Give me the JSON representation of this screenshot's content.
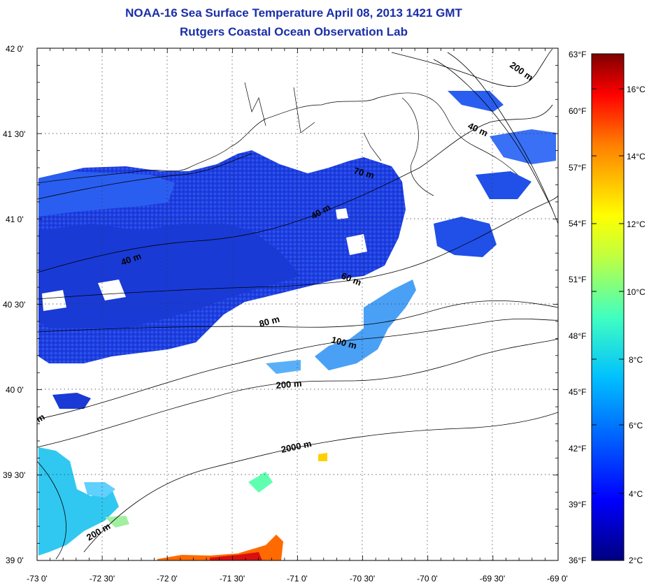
{
  "title": "NOAA-16 Sea Surface Temperature April 08, 2013 1421 GMT",
  "subtitle": "Rutgers Coastal Ocean Observation Lab",
  "map": {
    "lon_range": [
      -73,
      -69
    ],
    "lat_range": [
      39,
      42
    ],
    "lon_labels": [
      "-73 0'",
      "-72 30'",
      "-72 0'",
      "-71 30'",
      "-71 0'",
      "-70 30'",
      "-70 0'",
      "-69 30'",
      "-69 0'"
    ],
    "lat_labels": [
      "42 0'",
      "41 30'",
      "41 0'",
      "40 30'",
      "40 0'",
      "39 30'",
      "39 0'"
    ],
    "contour_labels": [
      "200 m",
      "40 m",
      "70 m",
      "40 m",
      "40 m",
      "60 m",
      "80 m",
      "100 m",
      "200 m",
      "2000 m",
      "200 m",
      "m"
    ],
    "grid": "dotted"
  },
  "colorbar": {
    "fahrenheit_labels": [
      "63°F",
      "60°F",
      "57°F",
      "54°F",
      "51°F",
      "48°F",
      "45°F",
      "42°F",
      "39°F",
      "36°F"
    ],
    "celsius_labels": [
      "16°C",
      "14°C",
      "12°C",
      "10°C",
      "8°C",
      "6°C",
      "4°C",
      "2°C"
    ],
    "range_c": [
      2,
      17.2
    ],
    "colors": [
      "#00007f",
      "#0000ff",
      "#007fff",
      "#00ffff",
      "#7fff7f",
      "#ffff00",
      "#ff7f00",
      "#ff0000",
      "#7f0000"
    ]
  }
}
